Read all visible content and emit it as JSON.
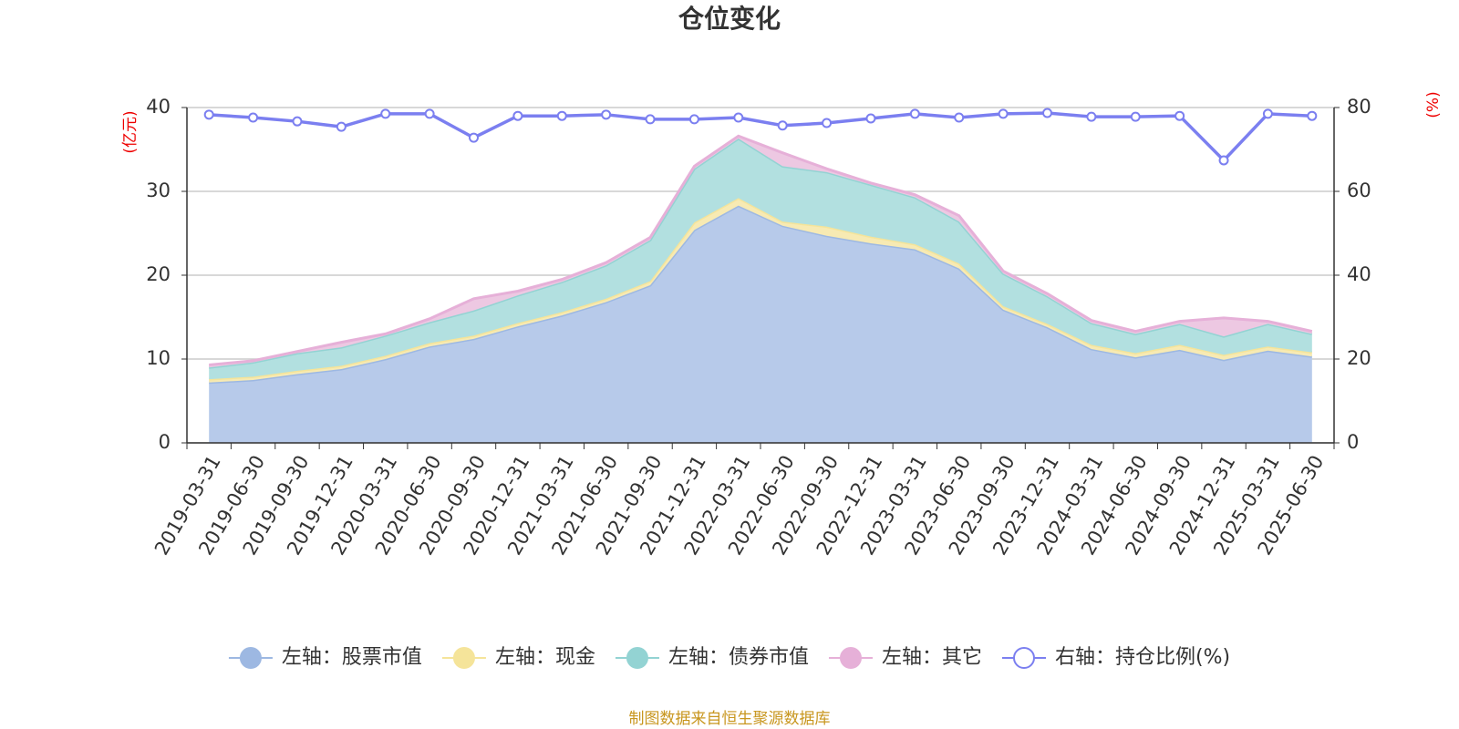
{
  "chart_data": {
    "type": "stacked-area-line",
    "title": "仓位变化",
    "y_label": "(亿元)",
    "y2_label": "(%)",
    "source": "制图数据来自恒生聚源数据库",
    "categories": [
      "2019-03-31",
      "2019-06-30",
      "2019-09-30",
      "2019-12-31",
      "2020-03-31",
      "2020-06-30",
      "2020-09-30",
      "2020-12-31",
      "2021-03-31",
      "2021-06-30",
      "2021-09-30",
      "2021-12-31",
      "2022-03-31",
      "2022-06-30",
      "2022-09-30",
      "2022-12-31",
      "2023-03-31",
      "2023-06-30",
      "2023-09-30",
      "2023-12-31",
      "2024-03-31",
      "2024-06-30",
      "2024-09-30",
      "2024-12-31",
      "2025-03-31",
      "2025-06-30"
    ],
    "series": [
      {
        "name": "左轴：股票市值",
        "color": "#9db8e2",
        "fill": "#b7caea",
        "values": [
          7.2,
          7.5,
          8.2,
          8.8,
          10.0,
          11.5,
          12.4,
          13.9,
          15.2,
          16.8,
          18.8,
          25.4,
          28.3,
          25.9,
          24.7,
          23.8,
          23.1,
          20.8,
          15.9,
          13.8,
          11.2,
          10.2,
          11.1,
          9.9,
          11.0,
          10.3
        ]
      },
      {
        "name": "左轴：现金",
        "color": "#f5e49a",
        "fill": "#f7eab3",
        "values": [
          0.4,
          0.4,
          0.4,
          0.4,
          0.4,
          0.4,
          0.4,
          0.4,
          0.4,
          0.4,
          0.5,
          0.9,
          0.9,
          0.5,
          1.1,
          0.8,
          0.6,
          0.6,
          0.4,
          0.4,
          0.5,
          0.5,
          0.6,
          0.6,
          0.5,
          0.5
        ]
      },
      {
        "name": "左轴：债券市值",
        "color": "#93d3d3",
        "fill": "#b2e0e0",
        "values": [
          1.4,
          1.7,
          2.1,
          2.2,
          2.4,
          2.5,
          3.0,
          3.3,
          3.6,
          4.0,
          4.9,
          6.4,
          7.1,
          6.6,
          6.5,
          6.2,
          5.6,
          5.0,
          3.9,
          3.3,
          2.6,
          2.3,
          2.5,
          2.2,
          2.7,
          2.2
        ]
      },
      {
        "name": "左轴：其它",
        "color": "#e6b0d8",
        "fill": "#edc8e2",
        "values": [
          0.3,
          0.2,
          0.2,
          0.6,
          0.2,
          0.4,
          1.4,
          0.5,
          0.3,
          0.3,
          0.3,
          0.3,
          0.3,
          1.6,
          0.4,
          0.2,
          0.3,
          0.7,
          0.3,
          0.3,
          0.3,
          0.3,
          0.3,
          2.2,
          0.3,
          0.3
        ]
      },
      {
        "name": "右轴：持仓比例(%)",
        "color": "#7b7ff0",
        "axis": "y2",
        "values": [
          78.3,
          77.6,
          76.7,
          75.4,
          78.5,
          78.5,
          72.8,
          78.0,
          78.0,
          78.3,
          77.2,
          77.2,
          77.6,
          75.7,
          76.3,
          77.4,
          78.5,
          77.6,
          78.5,
          78.7,
          77.8,
          77.8,
          78.0,
          67.4,
          78.5,
          78.0
        ]
      }
    ],
    "ylim": [
      0,
      40
    ],
    "yticks": [
      0,
      10,
      20,
      30,
      40
    ],
    "y2lim": [
      0,
      80
    ],
    "y2ticks": [
      0,
      20,
      40,
      60,
      80
    ],
    "grid": true
  }
}
